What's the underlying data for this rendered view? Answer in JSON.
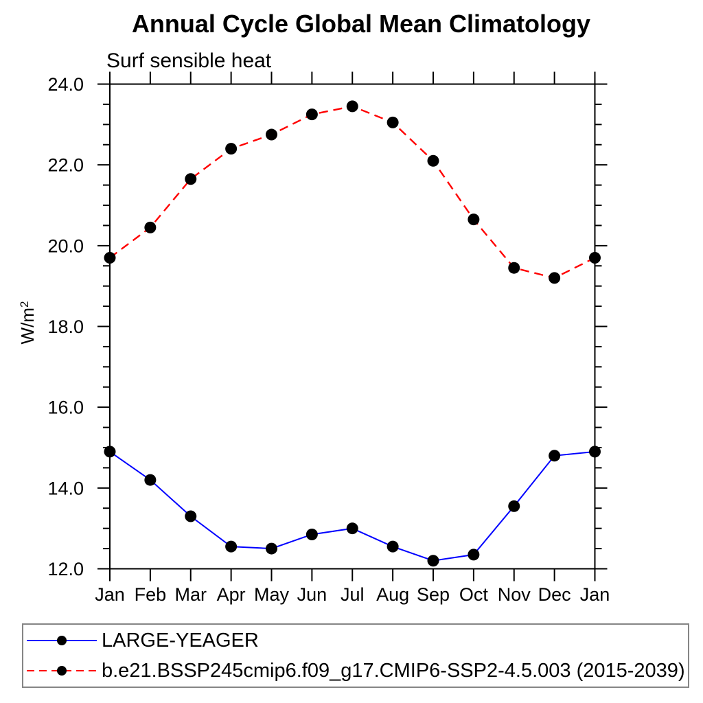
{
  "page": {
    "background": "#ffffff"
  },
  "chart_data": {
    "type": "line",
    "title": "Annual Cycle Global Mean Climatology",
    "subtitle": "Surf sensible heat",
    "ylabel": {
      "base": "W/m",
      "sup": "2"
    },
    "categories": [
      "Jan",
      "Feb",
      "Mar",
      "Apr",
      "May",
      "Jun",
      "Jul",
      "Aug",
      "Sep",
      "Oct",
      "Nov",
      "Dec",
      "Jan"
    ],
    "ylim": [
      12.0,
      24.0
    ],
    "yticks": [
      {
        "value": 12.0,
        "label": "12.0"
      },
      {
        "value": 14.0,
        "label": "14.0"
      },
      {
        "value": 16.0,
        "label": "16.0"
      },
      {
        "value": 18.0,
        "label": "18.0"
      },
      {
        "value": 20.0,
        "label": "20.0"
      },
      {
        "value": 22.0,
        "label": "22.0"
      },
      {
        "value": 24.0,
        "label": "24.0"
      }
    ],
    "ytick_minor_step": 0.5,
    "grid": false,
    "legend_position": "bottom-left-box",
    "axis_color": "#000000",
    "series": [
      {
        "name": "LARGE-YEAGER",
        "color": "#0000ff",
        "line_style": "solid",
        "marker": "filled-circle",
        "marker_color": "#000000",
        "values": [
          14.9,
          14.2,
          13.3,
          12.55,
          12.5,
          12.85,
          13.0,
          12.55,
          12.2,
          12.35,
          13.55,
          14.8,
          14.9
        ]
      },
      {
        "name": "b.e21.BSSP245cmip6.f09_g17.CMIP6-SSP2-4.5.003 (2015-2039)",
        "color": "#ff0000",
        "line_style": "dashed",
        "marker": "filled-circle",
        "marker_color": "#000000",
        "values": [
          19.7,
          20.45,
          21.65,
          22.4,
          22.75,
          23.25,
          23.45,
          23.05,
          22.1,
          20.65,
          19.45,
          19.2,
          19.7
        ]
      }
    ]
  }
}
